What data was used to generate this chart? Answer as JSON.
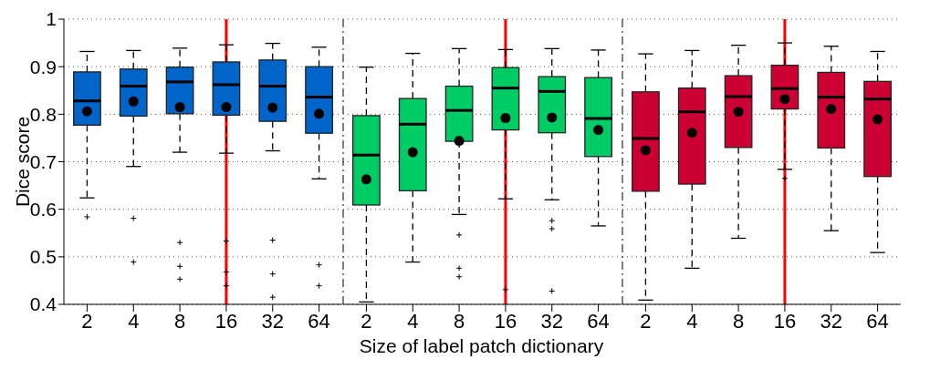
{
  "chart_data": [
    {
      "type": "box",
      "ylabel": "Dice score",
      "categories": [
        "2",
        "4",
        "8",
        "16",
        "32",
        "64"
      ],
      "ylim": [
        0.4,
        1
      ],
      "yticks": [
        0.4,
        0.5,
        0.6,
        0.7,
        0.8,
        0.9,
        1
      ],
      "grid": "y",
      "series": [
        {
          "color": "#0064c8",
          "boxes": [
            {
              "low": 0.624,
              "q1": 0.777,
              "median": 0.828,
              "q3": 0.889,
              "high": 0.932,
              "mean": 0.806,
              "outliers": [
                0.584
              ]
            },
            {
              "low": 0.69,
              "q1": 0.796,
              "median": 0.859,
              "q3": 0.895,
              "high": 0.934,
              "mean": 0.827,
              "outliers": [
                0.581,
                0.489
              ]
            },
            {
              "low": 0.72,
              "q1": 0.801,
              "median": 0.868,
              "q3": 0.899,
              "high": 0.939,
              "mean": 0.815,
              "outliers": [
                0.53,
                0.48,
                0.453
              ]
            },
            {
              "low": 0.718,
              "q1": 0.798,
              "median": 0.862,
              "q3": 0.91,
              "high": 0.946,
              "mean": 0.815,
              "outliers": [
                0.533,
                0.468,
                0.439
              ]
            },
            {
              "low": 0.723,
              "q1": 0.785,
              "median": 0.859,
              "q3": 0.914,
              "high": 0.949,
              "mean": 0.814,
              "outliers": [
                0.535,
                0.464,
                0.415
              ]
            },
            {
              "low": 0.664,
              "q1": 0.76,
              "median": 0.836,
              "q3": 0.9,
              "high": 0.941,
              "mean": 0.801,
              "outliers": [
                0.483,
                0.439
              ]
            }
          ]
        }
      ],
      "ref_lines": [
        {
          "axis": "x",
          "value": "16",
          "color": "#ff0000"
        }
      ]
    },
    {
      "type": "box",
      "xlabel": "Size of label patch dictionary",
      "categories": [
        "2",
        "4",
        "8",
        "16",
        "32",
        "64"
      ],
      "ylim": [
        0.4,
        1
      ],
      "yticks": [
        0.4,
        0.5,
        0.6,
        0.7,
        0.8,
        0.9,
        1
      ],
      "grid": "y",
      "tick_labels": "x",
      "series": [
        {
          "color": "#00cc66",
          "boxes": [
            {
              "low": 0.405,
              "q1": 0.609,
              "median": 0.714,
              "q3": 0.797,
              "high": 0.899,
              "mean": 0.663
            },
            {
              "low": 0.489,
              "q1": 0.639,
              "median": 0.779,
              "q3": 0.833,
              "high": 0.928,
              "mean": 0.72
            },
            {
              "low": 0.589,
              "q1": 0.743,
              "median": 0.808,
              "q3": 0.859,
              "high": 0.938,
              "mean": 0.744,
              "outliers": [
                0.546,
                0.476,
                0.458
              ]
            },
            {
              "low": 0.622,
              "q1": 0.767,
              "median": 0.855,
              "q3": 0.898,
              "high": 0.936,
              "mean": 0.792,
              "outliers": [
                0.431
              ]
            },
            {
              "low": 0.62,
              "q1": 0.761,
              "median": 0.848,
              "q3": 0.879,
              "high": 0.938,
              "mean": 0.793,
              "outliers": [
                0.576,
                0.559,
                0.428
              ]
            },
            {
              "low": 0.565,
              "q1": 0.711,
              "median": 0.791,
              "q3": 0.877,
              "high": 0.935,
              "mean": 0.767
            }
          ]
        }
      ],
      "ref_lines": [
        {
          "axis": "x",
          "value": "16",
          "color": "#ff0000"
        }
      ]
    },
    {
      "type": "box",
      "categories": [
        "2",
        "4",
        "8",
        "16",
        "32",
        "64"
      ],
      "ylim": [
        0.4,
        1
      ],
      "yticks": [
        0.4,
        0.5,
        0.6,
        0.7,
        0.8,
        0.9,
        1
      ],
      "grid": "y",
      "tick_labels": "x",
      "series": [
        {
          "color": "#cc0033",
          "boxes": [
            {
              "low": 0.409,
              "q1": 0.638,
              "median": 0.749,
              "q3": 0.847,
              "high": 0.927,
              "mean": 0.724
            },
            {
              "low": 0.476,
              "q1": 0.653,
              "median": 0.805,
              "q3": 0.855,
              "high": 0.934,
              "mean": 0.761
            },
            {
              "low": 0.539,
              "q1": 0.73,
              "median": 0.837,
              "q3": 0.881,
              "high": 0.945,
              "mean": 0.805
            },
            {
              "low": 0.684,
              "q1": 0.811,
              "median": 0.854,
              "q3": 0.903,
              "high": 0.95,
              "mean": 0.832,
              "outliers": [
                0.665
              ]
            },
            {
              "low": 0.555,
              "q1": 0.729,
              "median": 0.836,
              "q3": 0.888,
              "high": 0.943,
              "mean": 0.811
            },
            {
              "low": 0.509,
              "q1": 0.669,
              "median": 0.832,
              "q3": 0.869,
              "high": 0.932,
              "mean": 0.789
            }
          ]
        }
      ],
      "ref_lines": [
        {
          "axis": "x",
          "value": "16",
          "color": "#ff0000"
        }
      ]
    }
  ]
}
